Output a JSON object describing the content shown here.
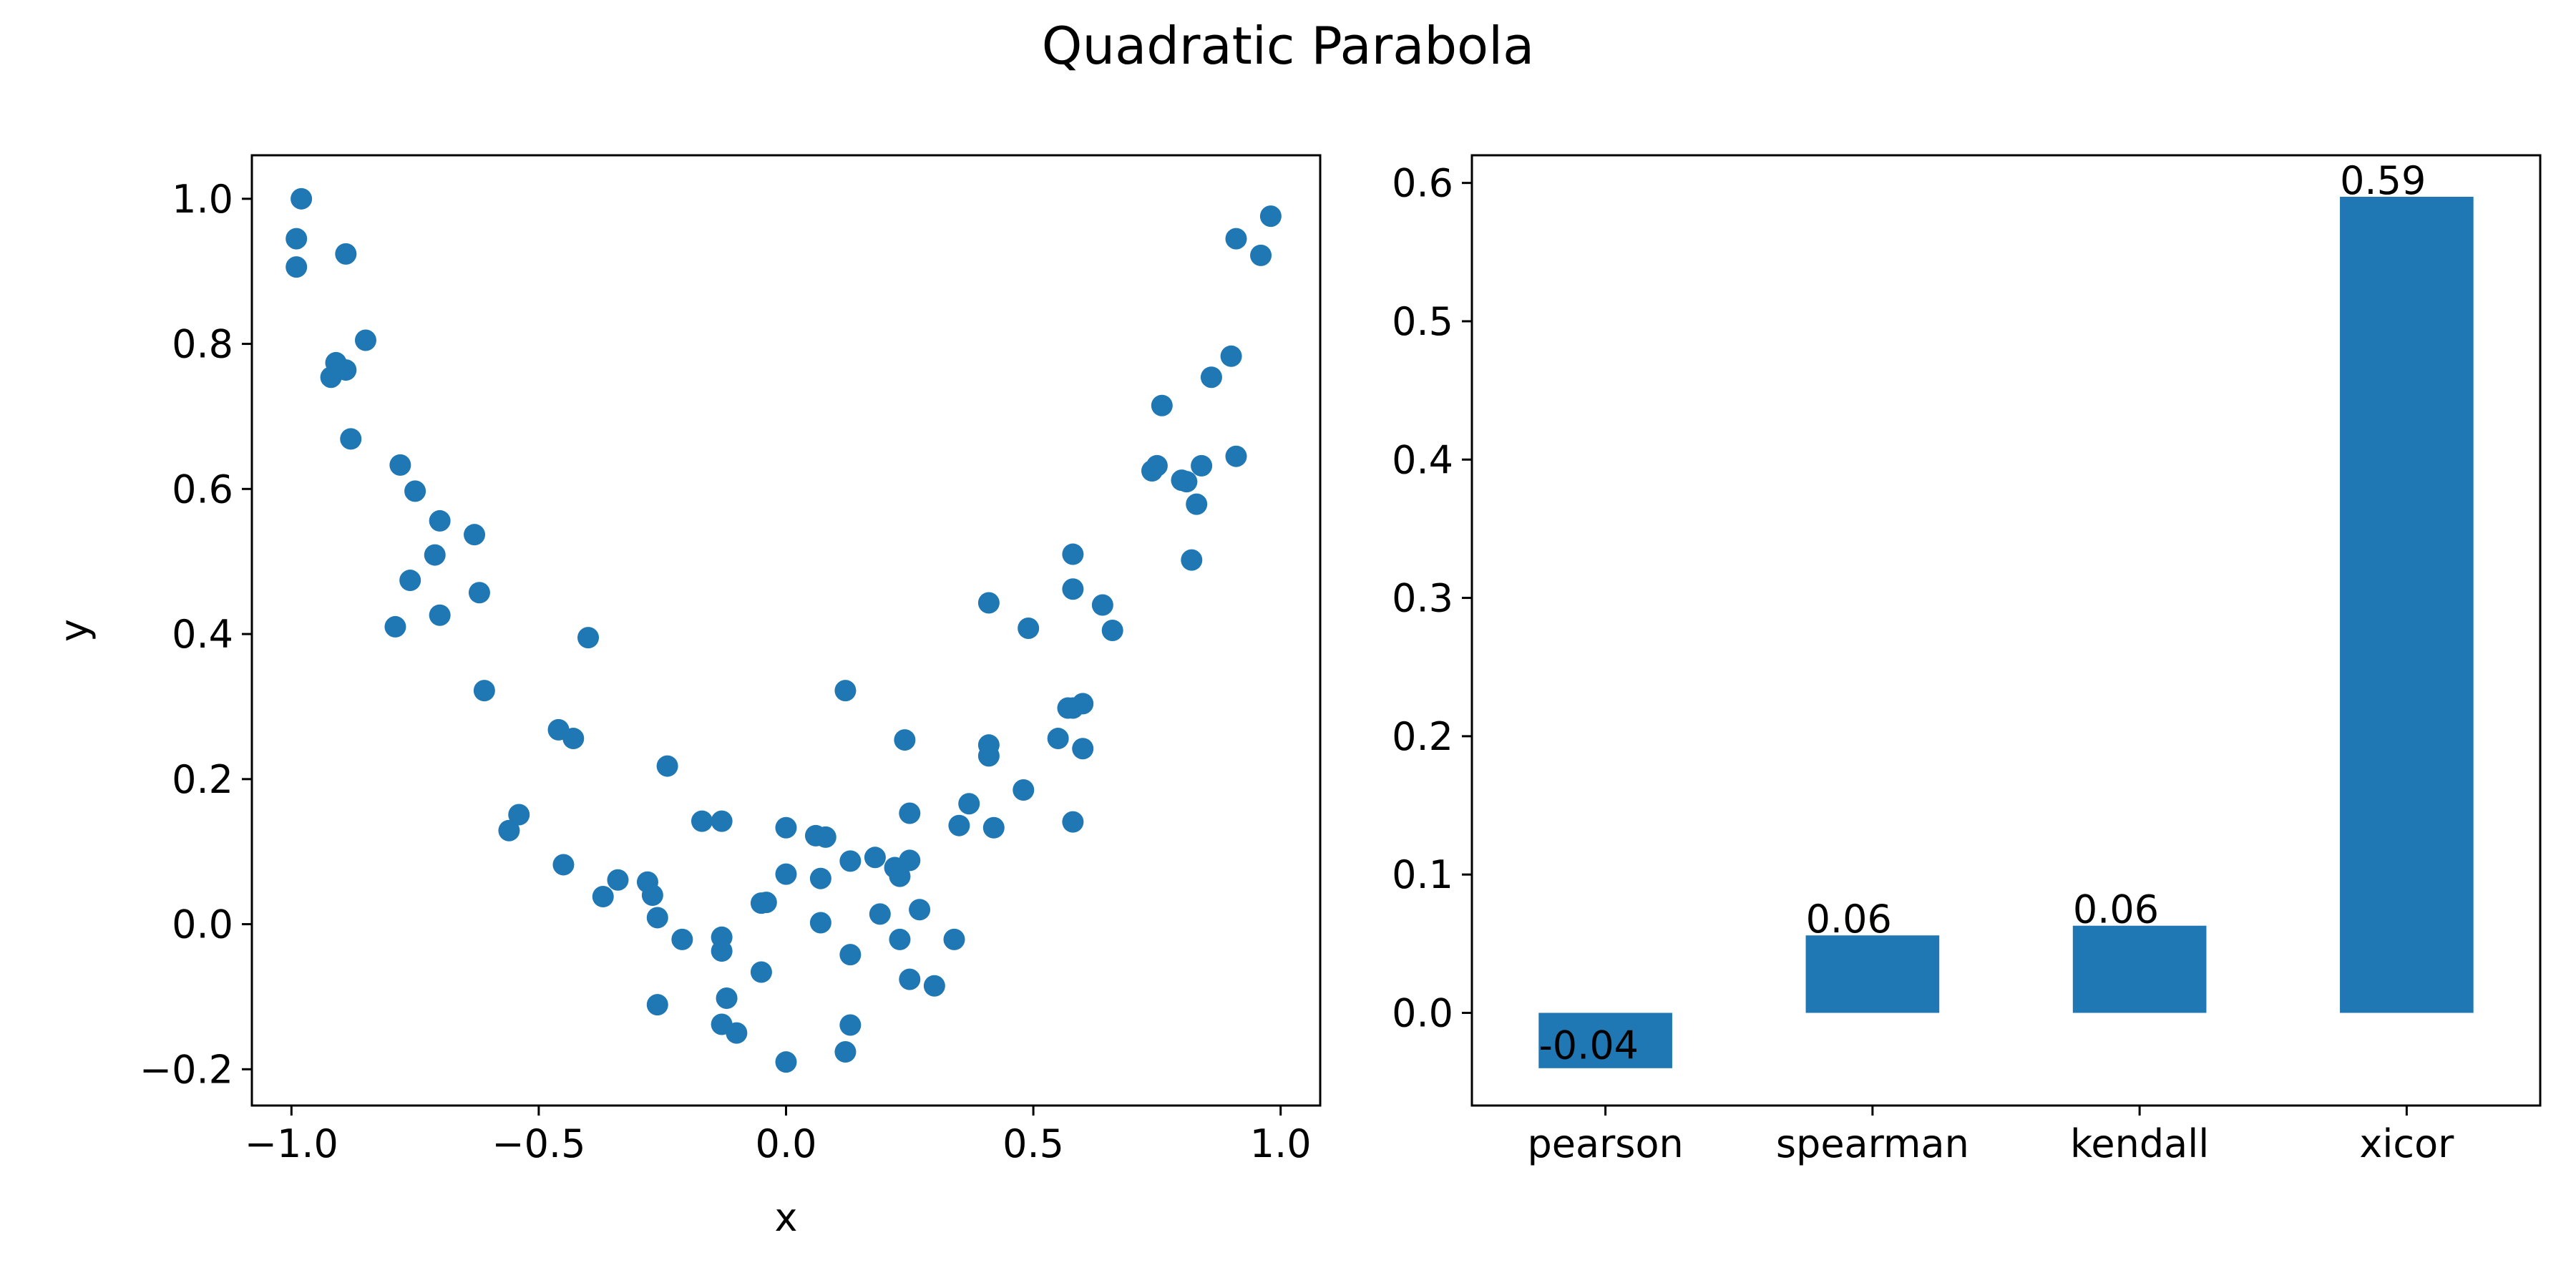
{
  "title": "Quadratic Parabola",
  "chart_data": [
    {
      "type": "scatter",
      "xlabel": "x",
      "ylabel": "y",
      "xlim": [
        -1.08,
        1.08
      ],
      "ylim": [
        -0.25,
        1.06
      ],
      "xticks": [
        -1.0,
        -0.5,
        0.0,
        0.5,
        1.0
      ],
      "xtick_labels": [
        "−1.0",
        "−0.5",
        "0.0",
        "0.5",
        "1.0"
      ],
      "yticks": [
        -0.2,
        0.0,
        0.2,
        0.4,
        0.6,
        0.8,
        1.0
      ],
      "ytick_labels": [
        "−0.2",
        "0.0",
        "0.2",
        "0.4",
        "0.6",
        "0.8",
        "1.0"
      ],
      "color": "#1f77b4",
      "points": [
        [
          -0.99,
          0.945
        ],
        [
          -0.99,
          0.906
        ],
        [
          -0.98,
          1.0
        ],
        [
          -0.89,
          0.924
        ],
        [
          -0.85,
          0.805
        ],
        [
          -0.91,
          0.774
        ],
        [
          -0.92,
          0.754
        ],
        [
          -0.89,
          0.764
        ],
        [
          -0.88,
          0.669
        ],
        [
          -0.78,
          0.633
        ],
        [
          -0.75,
          0.597
        ],
        [
          -0.7,
          0.556
        ],
        [
          -0.63,
          0.537
        ],
        [
          -0.71,
          0.509
        ],
        [
          -0.76,
          0.474
        ],
        [
          -0.62,
          0.457
        ],
        [
          -0.7,
          0.426
        ],
        [
          -0.79,
          0.41
        ],
        [
          -0.4,
          0.395
        ],
        [
          -0.61,
          0.322
        ],
        [
          -0.46,
          0.268
        ],
        [
          -0.43,
          0.256
        ],
        [
          -0.24,
          0.218
        ],
        [
          -0.54,
          0.151
        ],
        [
          -0.56,
          0.129
        ],
        [
          -0.17,
          0.142
        ],
        [
          -0.13,
          0.142
        ],
        [
          -0.45,
          0.082
        ],
        [
          -0.34,
          0.061
        ],
        [
          -0.28,
          0.058
        ],
        [
          -0.27,
          0.04
        ],
        [
          -0.37,
          0.038
        ],
        [
          -0.26,
          0.009
        ],
        [
          -0.21,
          -0.021
        ],
        [
          -0.13,
          -0.018
        ],
        [
          -0.13,
          -0.037
        ],
        [
          -0.05,
          -0.066
        ],
        [
          -0.26,
          -0.111
        ],
        [
          -0.12,
          -0.102
        ],
        [
          -0.13,
          -0.138
        ],
        [
          -0.1,
          -0.15
        ],
        [
          0.0,
          -0.19
        ],
        [
          0.0,
          0.133
        ],
        [
          -0.04,
          0.03
        ],
        [
          -0.05,
          0.029
        ],
        [
          0.0,
          0.069
        ],
        [
          0.06,
          0.122
        ],
        [
          0.08,
          0.12
        ],
        [
          0.07,
          0.063
        ],
        [
          0.07,
          0.002
        ],
        [
          0.12,
          0.322
        ],
        [
          0.13,
          0.087
        ],
        [
          0.18,
          0.092
        ],
        [
          0.22,
          0.078
        ],
        [
          0.23,
          0.066
        ],
        [
          0.25,
          0.088
        ],
        [
          0.19,
          0.014
        ],
        [
          0.27,
          0.02
        ],
        [
          0.13,
          -0.042
        ],
        [
          0.23,
          -0.021
        ],
        [
          0.13,
          -0.139
        ],
        [
          0.12,
          -0.176
        ],
        [
          0.25,
          -0.076
        ],
        [
          0.3,
          -0.085
        ],
        [
          0.34,
          -0.021
        ],
        [
          0.24,
          0.254
        ],
        [
          0.25,
          0.153
        ],
        [
          0.35,
          0.136
        ],
        [
          0.37,
          0.166
        ],
        [
          0.42,
          0.133
        ],
        [
          0.41,
          0.247
        ],
        [
          0.41,
          0.232
        ],
        [
          0.48,
          0.185
        ],
        [
          0.41,
          0.443
        ],
        [
          0.49,
          0.408
        ],
        [
          0.55,
          0.256
        ],
        [
          0.57,
          0.298
        ],
        [
          0.58,
          0.298
        ],
        [
          0.6,
          0.304
        ],
        [
          0.6,
          0.242
        ],
        [
          0.58,
          0.141
        ],
        [
          0.58,
          0.51
        ],
        [
          0.58,
          0.462
        ],
        [
          0.64,
          0.44
        ],
        [
          0.66,
          0.405
        ],
        [
          0.74,
          0.625
        ],
        [
          0.75,
          0.632
        ],
        [
          0.76,
          0.715
        ],
        [
          0.8,
          0.612
        ],
        [
          0.81,
          0.61
        ],
        [
          0.83,
          0.579
        ],
        [
          0.84,
          0.632
        ],
        [
          0.82,
          0.502
        ],
        [
          0.86,
          0.754
        ],
        [
          0.9,
          0.783
        ],
        [
          0.91,
          0.645
        ],
        [
          0.91,
          0.945
        ],
        [
          0.96,
          0.922
        ],
        [
          0.98,
          0.976
        ]
      ]
    },
    {
      "type": "bar",
      "categories": [
        "pearson",
        "spearman",
        "kendall",
        "xicor"
      ],
      "values": [
        -0.04,
        0.056,
        0.063,
        0.59
      ],
      "value_labels": [
        "-0.04",
        "0.06",
        "0.06",
        "0.59"
      ],
      "ylim": [
        -0.067,
        0.62
      ],
      "yticks": [
        0.0,
        0.1,
        0.2,
        0.3,
        0.4,
        0.5,
        0.6
      ],
      "ytick_labels": [
        "0.0",
        "0.1",
        "0.2",
        "0.3",
        "0.4",
        "0.5",
        "0.6"
      ],
      "color": "#1f77b4"
    }
  ]
}
